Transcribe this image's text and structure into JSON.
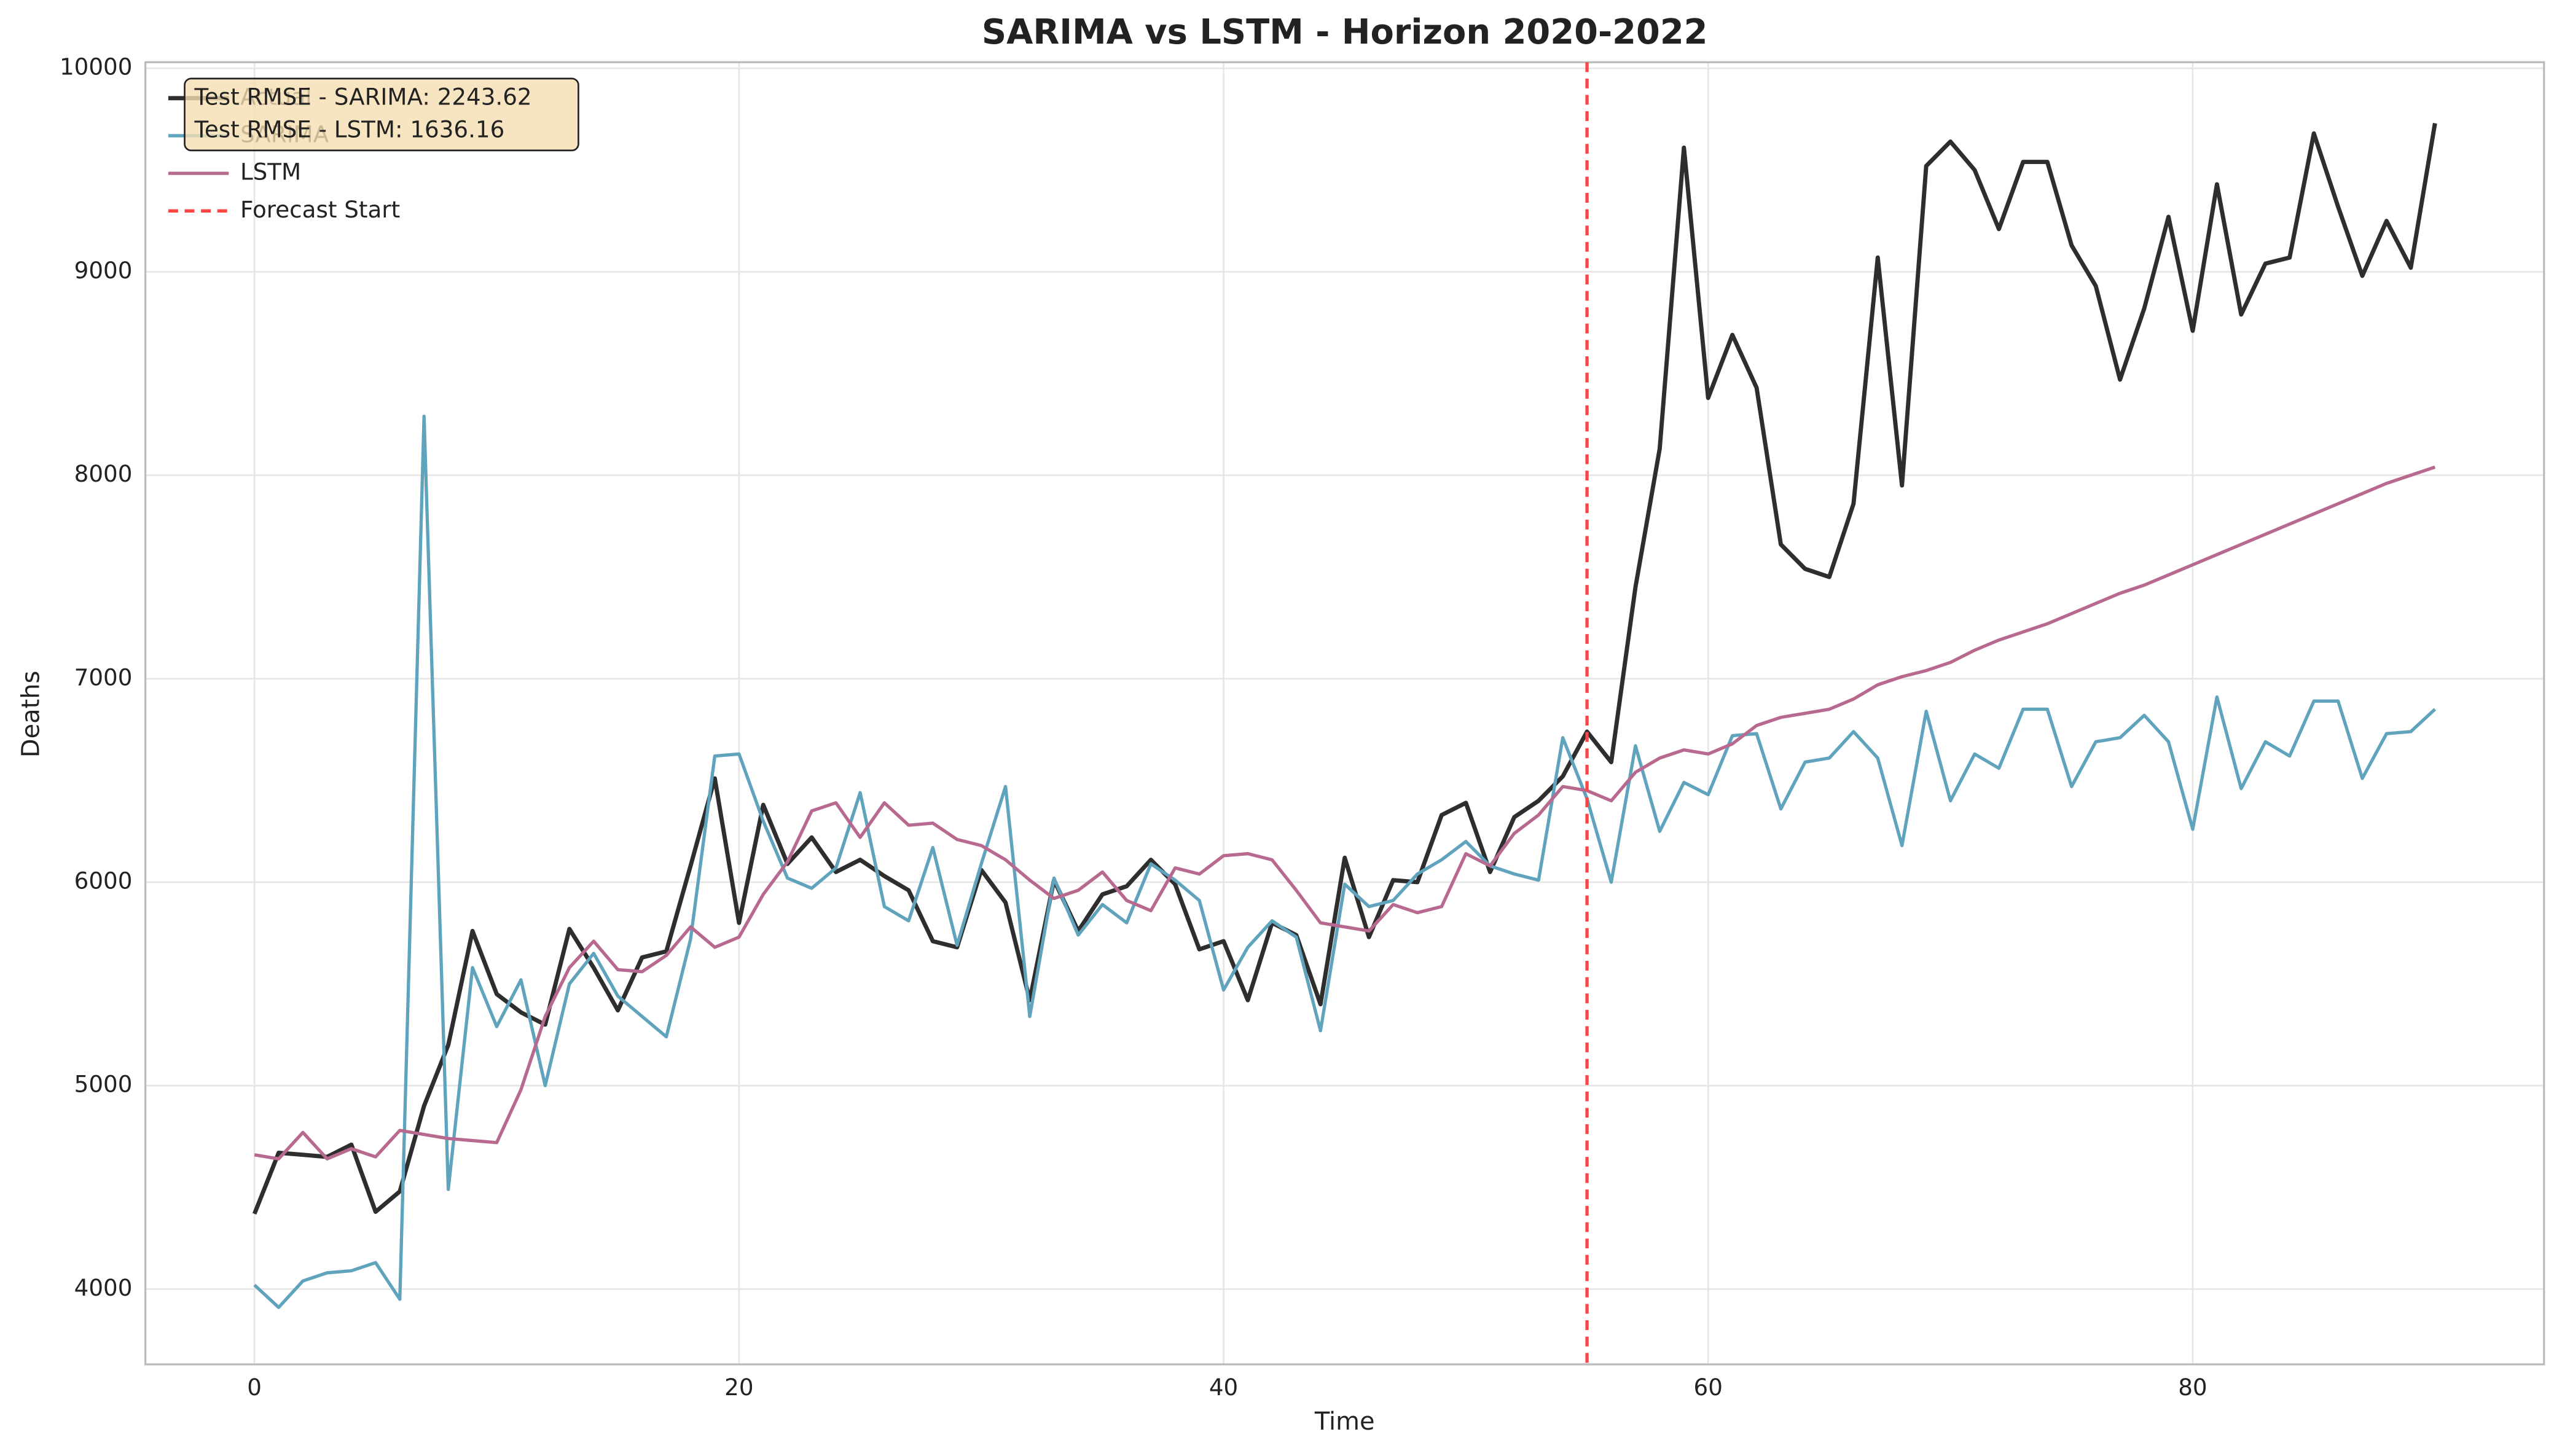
{
  "chart_data": {
    "type": "line",
    "title": "SARIMA vs LSTM - Horizon 2020-2022",
    "xlabel": "Time",
    "ylabel": "Deaths",
    "x": [
      0,
      1,
      2,
      3,
      4,
      5,
      6,
      7,
      8,
      9,
      10,
      11,
      12,
      13,
      14,
      15,
      16,
      17,
      18,
      19,
      20,
      21,
      22,
      23,
      24,
      25,
      26,
      27,
      28,
      29,
      30,
      31,
      32,
      33,
      34,
      35,
      36,
      37,
      38,
      39,
      40,
      41,
      42,
      43,
      44,
      45,
      46,
      47,
      48,
      49,
      50,
      51,
      52,
      53,
      54,
      55,
      56,
      57,
      58,
      59,
      60,
      61,
      62,
      63,
      64,
      65,
      66,
      67,
      68,
      69,
      70,
      71,
      72,
      73,
      74,
      75,
      76,
      77,
      78,
      79,
      80,
      81,
      82,
      83,
      84,
      85,
      86,
      87,
      88,
      89,
      90
    ],
    "series": [
      {
        "name": "Actual",
        "color": "#2e2e2e",
        "width": 2.6,
        "values": [
          4370,
          4670,
          4660,
          4650,
          4710,
          4380,
          4480,
          4900,
          5200,
          5760,
          5450,
          5360,
          5300,
          5770,
          5580,
          5370,
          5630,
          5660,
          6080,
          6510,
          5800,
          6380,
          6090,
          6220,
          6050,
          6110,
          6030,
          5960,
          5710,
          5680,
          6060,
          5900,
          5420,
          6010,
          5760,
          5940,
          5980,
          6110,
          5990,
          5670,
          5710,
          5420,
          5800,
          5740,
          5400,
          6120,
          5730,
          6010,
          6000,
          6330,
          6390,
          6050,
          6320,
          6400,
          6520,
          6740,
          6590,
          7450,
          8130,
          9610,
          8380,
          8690,
          8430,
          7660,
          7540,
          7500,
          7860,
          9070,
          7950,
          9520,
          9640,
          9500,
          9210,
          9540,
          9540,
          9130,
          8930,
          8470,
          8820,
          9270,
          8710,
          9430,
          8790,
          9040,
          9070,
          9680,
          9320,
          8980,
          9250,
          9020,
          9730
        ]
      },
      {
        "name": "SARIMA",
        "color": "#5fa3bd",
        "width": 2,
        "values": [
          4020,
          3910,
          4040,
          4080,
          4090,
          4130,
          3950,
          8290,
          4490,
          5580,
          5290,
          5520,
          5000,
          5500,
          5650,
          5440,
          5340,
          5240,
          5720,
          6620,
          6630,
          6300,
          6020,
          5970,
          6070,
          6440,
          5880,
          5810,
          6170,
          5690,
          6090,
          6470,
          5340,
          6020,
          5740,
          5890,
          5800,
          6090,
          6010,
          5910,
          5470,
          5680,
          5810,
          5730,
          5270,
          5990,
          5880,
          5910,
          6040,
          6110,
          6200,
          6080,
          6040,
          6010,
          6710,
          6410,
          6000,
          6670,
          6250,
          6490,
          6430,
          6720,
          6730,
          6360,
          6590,
          6610,
          6740,
          6610,
          6180,
          6840,
          6400,
          6630,
          6560,
          6850,
          6850,
          6470,
          6690,
          6710,
          6820,
          6690,
          6260,
          6910,
          6460,
          6690,
          6620,
          6890,
          6890,
          6510,
          6730,
          6740,
          6850
        ]
      },
      {
        "name": "LSTM",
        "color": "#b8698f",
        "width": 2,
        "values": [
          4660,
          4640,
          4770,
          4640,
          4690,
          4650,
          4780,
          4760,
          4740,
          4730,
          4720,
          4980,
          5340,
          5580,
          5710,
          5570,
          5560,
          5640,
          5780,
          5680,
          5730,
          5940,
          6100,
          6350,
          6390,
          6220,
          6390,
          6280,
          6290,
          6210,
          6180,
          6110,
          6010,
          5920,
          5960,
          6050,
          5910,
          5860,
          6070,
          6040,
          6130,
          6140,
          6110,
          5960,
          5800,
          5780,
          5760,
          5890,
          5850,
          5880,
          6140,
          6080,
          6240,
          6330,
          6470,
          6450,
          6400,
          6540,
          6610,
          6650,
          6630,
          6680,
          6770,
          6810,
          6830,
          6850,
          6900,
          6970,
          7010,
          7040,
          7080,
          7140,
          7190,
          7230,
          7270,
          7320,
          7370,
          7420,
          7460,
          7510,
          7560,
          7610,
          7660,
          7710,
          7760,
          7810,
          7860,
          7910,
          7960,
          8000,
          8040
        ]
      }
    ],
    "vline": {
      "name": "Forecast Start",
      "x": 55,
      "color": "#ff4444"
    },
    "annotation": [
      "Test RMSE - SARIMA: 2243.62",
      "Test RMSE - LSTM: 1636.16"
    ],
    "xlim": [
      -4.5,
      94.5
    ],
    "ylim": [
      3630,
      10030
    ],
    "xticks": [
      0,
      20,
      40,
      60,
      80
    ],
    "yticks": [
      4000,
      5000,
      6000,
      7000,
      8000,
      9000,
      10000
    ],
    "grid": true,
    "legend": "upper-left"
  }
}
